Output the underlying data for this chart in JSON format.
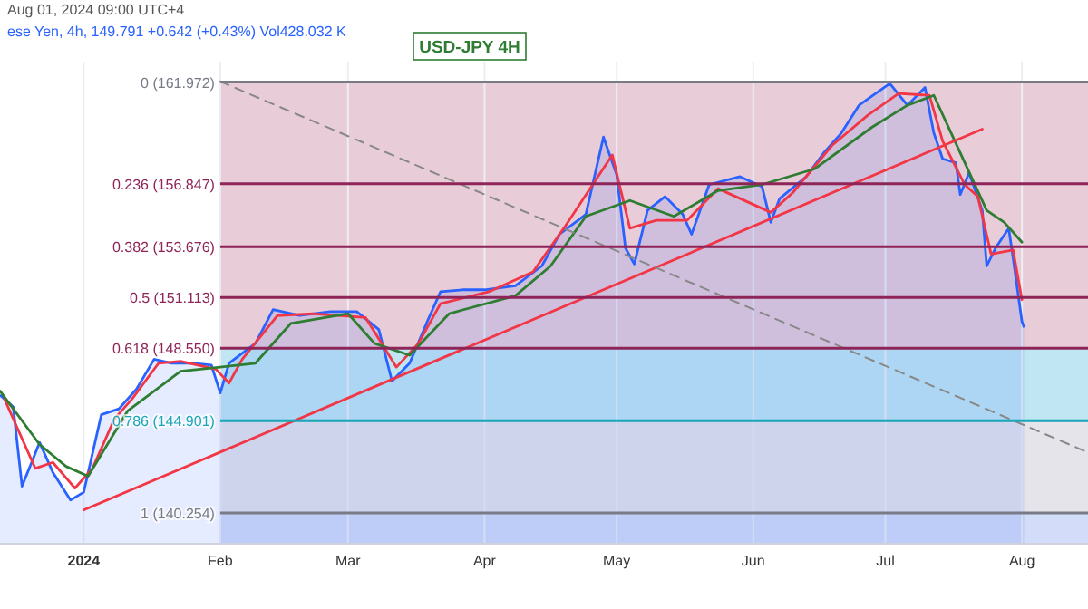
{
  "chart_data": {
    "type": "area",
    "title": "USD-JPY 4H",
    "subtitle": "ese Yen, 4h, 149.791 +0.642 (+0.43%) Vol428.032 K",
    "annotations": [
      "Aug 01, 2024 09:00 UTC+4"
    ],
    "xlim": [
      "2023-12-13",
      "2024-08-16"
    ],
    "ylim": [
      138.7,
      163.0
    ],
    "xticks": [
      {
        "value": "2024-01-01",
        "label": "2024"
      },
      {
        "value": "2024-02-01",
        "label": "Feb"
      },
      {
        "value": "2024-03-01",
        "label": "Mar"
      },
      {
        "value": "2024-04-01",
        "label": "Apr"
      },
      {
        "value": "2024-05-01",
        "label": "May"
      },
      {
        "value": "2024-06-01",
        "label": "Jun"
      },
      {
        "value": "2024-07-01",
        "label": "Jul"
      },
      {
        "value": "2024-08-01",
        "label": "Aug"
      }
    ],
    "tick_labels": "x",
    "grid": "x",
    "series": [
      {
        "color": "#2962ff",
        "x": [
          "2023-12-13",
          "2023-12-16",
          "2023-12-18",
          "2023-12-22",
          "2023-12-25",
          "2023-12-29",
          "2024-01-01",
          "2024-01-05",
          "2024-01-09",
          "2024-01-13",
          "2024-01-17",
          "2024-01-21",
          "2024-01-26",
          "2024-01-30",
          "2024-02-01",
          "2024-02-03",
          "2024-02-09",
          "2024-02-13",
          "2024-02-19",
          "2024-02-26",
          "2024-03-03",
          "2024-03-08",
          "2024-03-11",
          "2024-03-15",
          "2024-03-19",
          "2024-03-22",
          "2024-03-27",
          "2024-04-01",
          "2024-04-08",
          "2024-04-14",
          "2024-04-18",
          "2024-04-24",
          "2024-04-28",
          "2024-05-01",
          "2024-05-03",
          "2024-05-05",
          "2024-05-08",
          "2024-05-12",
          "2024-05-16",
          "2024-05-18",
          "2024-05-22",
          "2024-05-29",
          "2024-06-03",
          "2024-06-05",
          "2024-06-07",
          "2024-06-13",
          "2024-06-17",
          "2024-06-21",
          "2024-06-25",
          "2024-07-02",
          "2024-07-06",
          "2024-07-10",
          "2024-07-12",
          "2024-07-14",
          "2024-07-17",
          "2024-07-18",
          "2024-07-20",
          "2024-07-23",
          "2024-07-24",
          "2024-07-26",
          "2024-07-29",
          "2024-07-30",
          "2024-08-01",
          "2024-08-01T12:00"
        ],
        "values": [
          146.2,
          145.6,
          141.6,
          143.8,
          142.3,
          140.9,
          141.3,
          145.2,
          145.5,
          146.5,
          148.0,
          147.8,
          147.8,
          147.7,
          146.3,
          147.8,
          148.8,
          150.5,
          150.2,
          150.4,
          150.4,
          149.5,
          146.9,
          147.8,
          149.9,
          151.4,
          151.5,
          151.5,
          151.7,
          152.7,
          154.3,
          155.3,
          159.2,
          157.3,
          153.6,
          152.8,
          155.5,
          156.2,
          155.3,
          154.3,
          156.8,
          157.2,
          156.7,
          154.9,
          156.1,
          157.2,
          158.4,
          159.4,
          160.8,
          161.9,
          160.8,
          161.7,
          159.4,
          158.1,
          157.9,
          156.3,
          157.4,
          155.5,
          152.7,
          153.6,
          154.6,
          153.1,
          149.9,
          149.6
        ]
      },
      {
        "type": "line",
        "color": "#f23645",
        "x": [
          "2023-12-14",
          "2023-12-18",
          "2023-12-21",
          "2023-12-25",
          "2023-12-30",
          "2024-01-03",
          "2024-01-08",
          "2024-01-12",
          "2024-01-18",
          "2024-01-23",
          "2024-01-31",
          "2024-02-03",
          "2024-02-06",
          "2024-02-14",
          "2024-02-22",
          "2024-03-05",
          "2024-03-12",
          "2024-03-17",
          "2024-03-22",
          "2024-04-02",
          "2024-04-12",
          "2024-04-19",
          "2024-04-30",
          "2024-05-04",
          "2024-05-10",
          "2024-05-17",
          "2024-05-24",
          "2024-06-05",
          "2024-06-10",
          "2024-06-19",
          "2024-06-27",
          "2024-07-04",
          "2024-07-11",
          "2024-07-14",
          "2024-07-19",
          "2024-07-22",
          "2024-07-25",
          "2024-07-30",
          "2024-08-01"
        ],
        "values": [
          146.0,
          144.0,
          142.5,
          142.8,
          141.5,
          142.5,
          145.0,
          146.0,
          147.8,
          147.9,
          147.5,
          146.8,
          148.0,
          150.2,
          150.3,
          150.1,
          147.6,
          148.8,
          150.8,
          151.4,
          152.4,
          154.6,
          158.3,
          154.6,
          155.0,
          155.0,
          156.6,
          155.4,
          156.4,
          158.8,
          160.3,
          161.4,
          161.3,
          159.0,
          156.8,
          156.2,
          153.3,
          153.5,
          151.0
        ]
      },
      {
        "type": "line",
        "color": "#2e7d32",
        "x": [
          "2023-12-13",
          "2023-12-22",
          "2023-12-28",
          "2024-01-02",
          "2024-01-11",
          "2024-01-23",
          "2024-02-01",
          "2024-02-09",
          "2024-02-17",
          "2024-03-01",
          "2024-03-07",
          "2024-03-15",
          "2024-03-24",
          "2024-04-08",
          "2024-04-16",
          "2024-04-24",
          "2024-05-04",
          "2024-05-14",
          "2024-05-24",
          "2024-06-03",
          "2024-06-15",
          "2024-06-28",
          "2024-07-06",
          "2024-07-12",
          "2024-07-18",
          "2024-07-24",
          "2024-07-28",
          "2024-08-01"
        ],
        "values": [
          146.4,
          143.7,
          142.6,
          142.1,
          145.4,
          147.4,
          147.6,
          147.8,
          149.8,
          150.3,
          148.8,
          148.2,
          150.3,
          151.2,
          152.7,
          155.2,
          156.0,
          155.2,
          156.5,
          156.8,
          157.6,
          159.7,
          160.8,
          161.3,
          158.4,
          155.5,
          154.9,
          153.9
        ]
      },
      {
        "type": "line",
        "color": "#f23645",
        "x": [
          "2024-01-01",
          "2024-07-23"
        ],
        "values": [
          140.4,
          159.6
        ]
      },
      {
        "type": "line",
        "color": "#888888",
        "line_style": "dashed",
        "x": [
          "2024-02-01",
          "2024-08-16"
        ],
        "values": [
          162.0,
          143.3
        ]
      }
    ],
    "bands": [
      {
        "axis": "y",
        "from": 148.55,
        "to": 161.972,
        "color": "#e8ccd8"
      },
      {
        "axis": "y",
        "from": 144.901,
        "to": 148.55,
        "color": "#bfe6f2"
      },
      {
        "axis": "y",
        "from": 140.254,
        "to": 144.901,
        "color": "#e4e4ea"
      },
      {
        "axis": "y",
        "from": 138.7,
        "to": 140.254,
        "color": "#d3dcf8"
      }
    ],
    "ref_lines": [
      {
        "axis": "y",
        "value": 161.972,
        "label": "0 (161.972)",
        "color": "#787b86"
      },
      {
        "axis": "y",
        "value": 156.847,
        "label": "0.236 (156.847)",
        "color": "#8e2457"
      },
      {
        "axis": "y",
        "value": 153.676,
        "label": "0.382 (153.676)",
        "color": "#8e2457"
      },
      {
        "axis": "y",
        "value": 151.113,
        "label": "0.5 (151.113)",
        "color": "#8e2457"
      },
      {
        "axis": "y",
        "value": 148.55,
        "label": "0.618 (148.550)",
        "color": "#8e2457"
      },
      {
        "axis": "y",
        "value": 144.901,
        "label": "0.786 (144.901)",
        "color": "#1aa6b7"
      },
      {
        "axis": "y",
        "value": 140.254,
        "label": "1 (140.254)",
        "color": "#787b86"
      }
    ]
  }
}
